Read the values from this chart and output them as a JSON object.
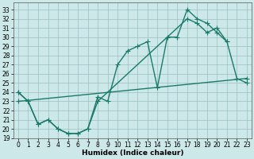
{
  "bg_color": "#cce8e8",
  "line_color": "#1a7a6a",
  "xlabel": "Humidex (Indice chaleur)",
  "xlim": [
    -0.5,
    23.5
  ],
  "ylim": [
    19,
    33.8
  ],
  "yticks": [
    19,
    20,
    21,
    22,
    23,
    24,
    25,
    26,
    27,
    28,
    29,
    30,
    31,
    32,
    33
  ],
  "xticks": [
    0,
    1,
    2,
    3,
    4,
    5,
    6,
    7,
    8,
    9,
    10,
    11,
    12,
    13,
    14,
    15,
    16,
    17,
    18,
    19,
    20,
    21,
    22,
    23
  ],
  "line1_x": [
    0,
    1,
    2,
    3,
    4,
    5,
    6,
    7,
    8,
    9,
    10,
    11,
    12,
    13,
    14,
    15,
    16,
    17,
    18,
    19,
    20,
    21
  ],
  "line1_y": [
    24.0,
    23.0,
    20.5,
    21.0,
    20.0,
    19.5,
    19.5,
    20.0,
    23.5,
    23.0,
    27.0,
    28.5,
    29.0,
    29.5,
    24.5,
    30.0,
    30.0,
    33.0,
    32.0,
    31.5,
    30.5,
    29.5
  ],
  "line2_x": [
    0,
    1,
    2,
    3,
    4,
    5,
    6,
    7,
    8,
    17,
    18,
    19,
    20,
    21,
    22,
    23
  ],
  "line2_y": [
    24.0,
    23.0,
    20.5,
    21.0,
    20.0,
    19.5,
    19.5,
    20.0,
    23.0,
    32.0,
    31.5,
    30.5,
    31.0,
    29.5,
    25.5,
    25.0
  ],
  "line3_x": [
    0,
    23
  ],
  "line3_y": [
    23.0,
    25.5
  ],
  "marker": "+",
  "markersize": 4,
  "linewidth": 1.0
}
